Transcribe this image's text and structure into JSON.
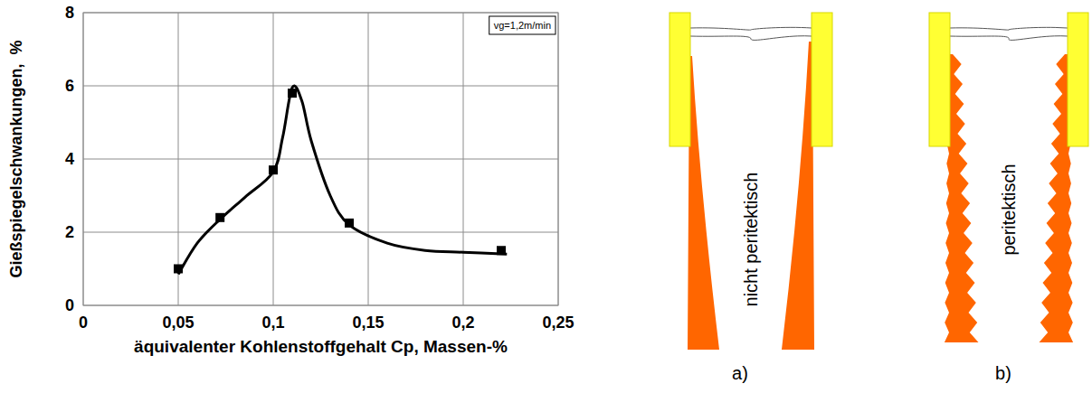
{
  "chart_data": {
    "type": "scatter",
    "xlabel": "äquivalenter Kohlenstoffgehalt Cp, Massen-%",
    "ylabel": "Gießspiegelschwankungen,  %",
    "annotation": "vg=1,2m/min",
    "xlim": [
      0,
      0.25
    ],
    "ylim": [
      0,
      8
    ],
    "xticks": [
      0,
      {
        "value": 0.05,
        "label": "0,05"
      },
      {
        "value": 0.1,
        "label": "0,1"
      },
      {
        "value": 0.15,
        "label": "0,15"
      },
      {
        "value": 0.2,
        "label": "0,2"
      },
      {
        "value": 0.25,
        "label": "0,25"
      }
    ],
    "yticks": [
      0,
      2,
      4,
      6,
      8
    ],
    "grid": true,
    "series": [
      {
        "type": "scatter",
        "marker": "square",
        "color": "#000000",
        "x": [
          0.05,
          0.072,
          0.1,
          0.11,
          0.14,
          0.22
        ],
        "values": [
          1.0,
          2.4,
          3.7,
          5.8,
          2.25,
          1.5
        ]
      },
      {
        "type": "line",
        "line_style": "solid",
        "color": "#000000",
        "x": [
          0.05,
          0.06,
          0.072,
          0.085,
          0.1,
          0.105,
          0.11,
          0.115,
          0.12,
          0.13,
          0.14,
          0.16,
          0.18,
          0.2,
          0.223
        ],
        "values": [
          0.85,
          1.7,
          2.35,
          2.95,
          3.65,
          4.6,
          5.95,
          5.6,
          4.5,
          3.0,
          2.2,
          1.7,
          1.5,
          1.45,
          1.4
        ]
      }
    ]
  },
  "diagram": {
    "panels": [
      {
        "letter": "a)",
        "label": "nicht peritektisch"
      },
      {
        "letter": "b)",
        "label": "peritektisch"
      }
    ]
  }
}
